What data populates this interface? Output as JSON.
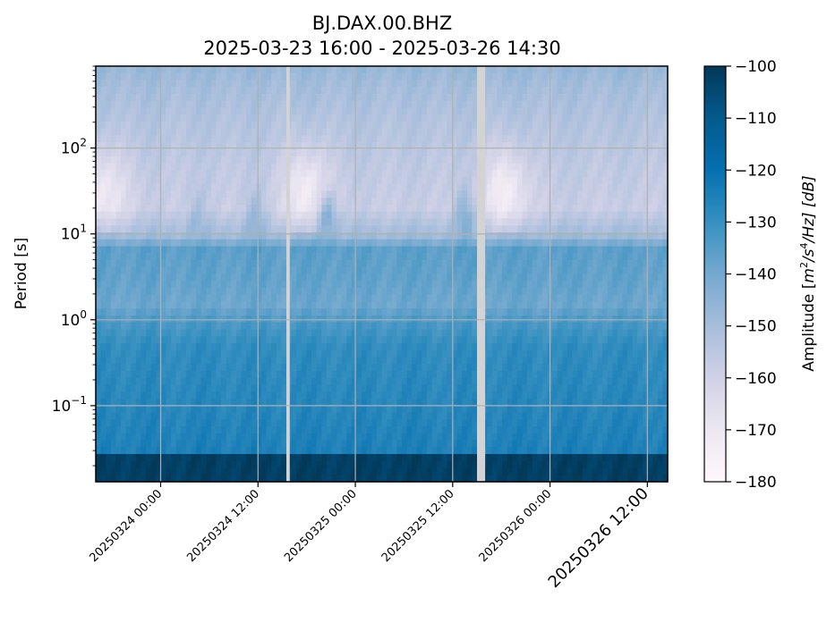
{
  "chart_data": {
    "type": "heatmap",
    "title": "BJ.DAX.00.BHZ",
    "subtitle": "2025-03-23 16:00 - 2025-03-26 14:30",
    "ylabel": "Period [s]",
    "yscale": "log",
    "ylim": [
      0.013,
      900
    ],
    "yticks": [
      {
        "value": 0.1,
        "base": "10",
        "exp": "−1"
      },
      {
        "value": 1,
        "base": "10",
        "exp": "0"
      },
      {
        "value": 10,
        "base": "10",
        "exp": "1"
      },
      {
        "value": 100,
        "base": "10",
        "exp": "2"
      }
    ],
    "xlim": [
      "2025-03-23 16:00",
      "2025-03-26 14:30"
    ],
    "xticks": [
      {
        "time": "2025-03-24 00:00",
        "label": "20250324 00:00"
      },
      {
        "time": "2025-03-24 12:00",
        "label": "20250324 12:00"
      },
      {
        "time": "2025-03-25 00:00",
        "label": "20250325 00:00"
      },
      {
        "time": "2025-03-25 12:00",
        "label": "20250325 12:00"
      },
      {
        "time": "2025-03-26 00:00",
        "label": "20250326 00:00"
      },
      {
        "time": "2025-03-26 12:00",
        "label": "20250326 12:00"
      }
    ],
    "grid": true,
    "colormap": "PuBu",
    "colorbar": {
      "label_prefix": "Amplitude [",
      "label_math": "m",
      "label_sup1": "2",
      "label_mid": "/s",
      "label_sup2": "4",
      "label_end": "/Hz] [dB]",
      "vmin": -180,
      "vmax": -100,
      "ticks": [
        "−100",
        "−110",
        "−120",
        "−130",
        "−140",
        "−150",
        "−160",
        "−170",
        "−180"
      ],
      "tick_values": [
        -100,
        -110,
        -120,
        -130,
        -140,
        -150,
        -160,
        -170,
        -180
      ]
    },
    "gaps": [
      {
        "start": "2025-03-24 15:30",
        "end": "2025-03-24 15:55"
      },
      {
        "start": "2025-03-25 15:00",
        "end": "2025-03-25 16:00"
      }
    ],
    "period_profile": [
      {
        "period": 0.013,
        "db": -102
      },
      {
        "period": 0.027,
        "db": -102
      },
      {
        "period": 0.03,
        "db": -125
      },
      {
        "period": 0.1,
        "db": -127
      },
      {
        "period": 0.5,
        "db": -129
      },
      {
        "period": 0.9,
        "db": -133
      },
      {
        "period": 1.5,
        "db": -139
      },
      {
        "period": 3,
        "db": -137
      },
      {
        "period": 7,
        "db": -136
      },
      {
        "period": 9,
        "db": -148
      },
      {
        "period": 20,
        "db": -158
      },
      {
        "period": 60,
        "db": -156
      },
      {
        "period": 200,
        "db": -153
      },
      {
        "period": 500,
        "db": -150
      },
      {
        "period": 900,
        "db": -147
      }
    ],
    "quiet_periods": [
      {
        "center": "2025-03-23 16:30",
        "width_hours": 5,
        "db": -14
      },
      {
        "center": "2025-03-24 18:00",
        "width_hours": 4,
        "db": -16
      },
      {
        "center": "2025-03-25 18:30",
        "width_hours": 4,
        "db": -16
      }
    ],
    "events": [
      {
        "time": "2025-03-24 20:30",
        "db": 18
      },
      {
        "time": "2025-03-25 13:30",
        "db": 12
      },
      {
        "time": "2025-03-24 11:40",
        "db": 8
      },
      {
        "time": "2025-03-24 04:30",
        "db": 6
      }
    ]
  }
}
